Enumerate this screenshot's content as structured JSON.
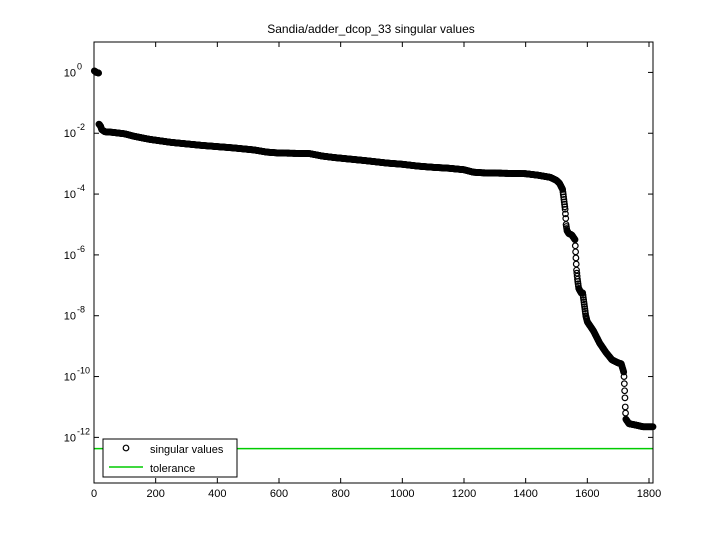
{
  "chart_data": {
    "type": "scatter",
    "title": "Sandia/adder_dcop_33 singular values",
    "xlabel": "",
    "ylabel": "",
    "xlim": [
      0,
      1813
    ],
    "ylim_log10": [
      -13.5,
      1
    ],
    "y_scale": "log",
    "x_ticks": [
      0,
      200,
      400,
      600,
      800,
      1000,
      1200,
      1400,
      1600,
      1800
    ],
    "y_ticks_exponent": [
      0,
      -2,
      -4,
      -6,
      -8,
      -10,
      -12
    ],
    "y_tick_base": "10",
    "grid": false,
    "legend_position": "bottom-left",
    "series": [
      {
        "name": "singular values",
        "marker": "circle",
        "color": "#000000",
        "profile_x": [
          1,
          8,
          15,
          16,
          18,
          22,
          25,
          35,
          60,
          100,
          130,
          180,
          250,
          350,
          450,
          520,
          560,
          600,
          700,
          740,
          780,
          830,
          880,
          950,
          1000,
          1050,
          1100,
          1150,
          1200,
          1230,
          1260,
          1300,
          1350,
          1400,
          1440,
          1480,
          1500,
          1510,
          1520,
          1528,
          1530,
          1531,
          1534,
          1540,
          1545,
          1550,
          1560,
          1565,
          1568,
          1572,
          1580,
          1585,
          1595,
          1600,
          1620,
          1640,
          1660,
          1680,
          1700,
          1710,
          1718,
          1719,
          1722,
          1723,
          1725,
          1735,
          1760,
          1780,
          1800,
          1813
        ],
        "profile_log10": [
          0.05,
          0.0,
          -0.02,
          -1.7,
          -1.72,
          -1.78,
          -1.88,
          -1.95,
          -1.97,
          -2.02,
          -2.1,
          -2.2,
          -2.3,
          -2.4,
          -2.48,
          -2.55,
          -2.62,
          -2.65,
          -2.67,
          -2.75,
          -2.8,
          -2.85,
          -2.9,
          -2.98,
          -3.02,
          -3.08,
          -3.12,
          -3.15,
          -3.2,
          -3.28,
          -3.3,
          -3.31,
          -3.32,
          -3.33,
          -3.38,
          -3.45,
          -3.55,
          -3.65,
          -3.85,
          -4.5,
          -4.8,
          -5.0,
          -5.2,
          -5.3,
          -5.32,
          -5.35,
          -5.5,
          -6.5,
          -6.8,
          -7.1,
          -7.25,
          -7.25,
          -8.0,
          -8.2,
          -8.5,
          -8.9,
          -9.2,
          -9.45,
          -9.55,
          -9.58,
          -9.85,
          -10.0,
          -10.7,
          -11.0,
          -11.4,
          -11.55,
          -11.6,
          -11.65,
          -11.65,
          -11.65
        ],
        "n_points": 1813
      },
      {
        "name": "tolerance",
        "marker": "line",
        "color": "#00cc00",
        "y_log10": -12.37
      }
    ]
  }
}
